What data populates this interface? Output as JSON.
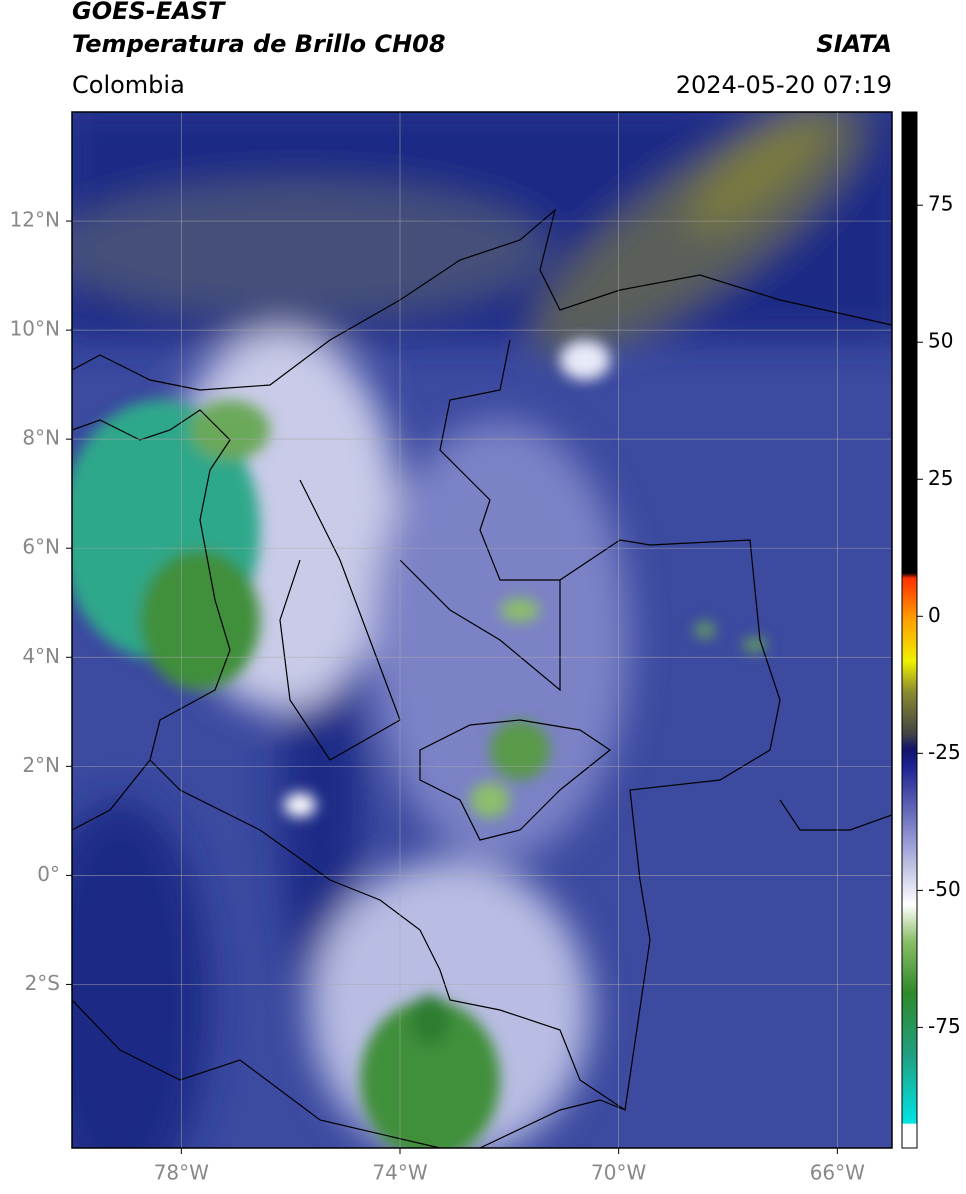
{
  "header": {
    "title_lines": [
      "GOES-EAST",
      "Temperatura de Brillo CH08"
    ],
    "source": "SIATA",
    "region": "Colombia",
    "datetime": "2024-05-20 07:19"
  },
  "map": {
    "xlim": [
      -80,
      -65
    ],
    "ylim": [
      -5,
      14
    ],
    "grid": true,
    "xticks": [
      {
        "value": -78,
        "label": "78°W"
      },
      {
        "value": -74,
        "label": "74°W"
      },
      {
        "value": -70,
        "label": "70°W"
      },
      {
        "value": -66,
        "label": "66°W"
      }
    ],
    "yticks": [
      {
        "value": 12,
        "label": "12°N"
      },
      {
        "value": 10,
        "label": "10°N"
      },
      {
        "value": 8,
        "label": "8°N"
      },
      {
        "value": 6,
        "label": "6°N"
      },
      {
        "value": 4,
        "label": "4°N"
      },
      {
        "value": 2,
        "label": "2°N"
      },
      {
        "value": 0,
        "label": "0°"
      },
      {
        "value": -2,
        "label": "2°S"
      }
    ]
  },
  "colorbar": {
    "lim": [
      -97,
      92
    ],
    "ticks": [
      75,
      50,
      25,
      0,
      -25,
      -50,
      -75
    ]
  }
}
